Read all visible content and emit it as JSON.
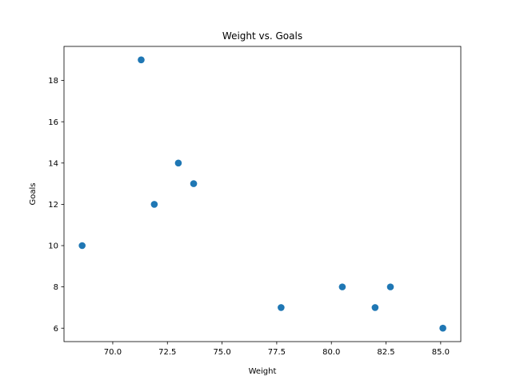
{
  "chart_data": {
    "type": "scatter",
    "title": "Weight vs. Goals",
    "xlabel": "Weight",
    "ylabel": "Goals",
    "xlim": [
      67.77,
      85.92
    ],
    "ylim": [
      5.35,
      19.65
    ],
    "x_ticks": [
      70.0,
      72.5,
      75.0,
      77.5,
      80.0,
      82.5,
      85.0
    ],
    "x_tick_labels": [
      "70.0",
      "72.5",
      "75.0",
      "77.5",
      "80.0",
      "82.5",
      "85.0"
    ],
    "y_ticks": [
      6,
      8,
      10,
      12,
      14,
      16,
      18
    ],
    "y_tick_labels": [
      "6",
      "8",
      "10",
      "12",
      "14",
      "16",
      "18"
    ],
    "grid": false,
    "marker_color": "#1f77b4",
    "points": [
      {
        "x": 71.3,
        "y": 19
      },
      {
        "x": 73.0,
        "y": 14
      },
      {
        "x": 73.7,
        "y": 13
      },
      {
        "x": 71.9,
        "y": 12
      },
      {
        "x": 68.6,
        "y": 10
      },
      {
        "x": 80.5,
        "y": 8
      },
      {
        "x": 82.7,
        "y": 8
      },
      {
        "x": 77.7,
        "y": 7
      },
      {
        "x": 82.0,
        "y": 7
      },
      {
        "x": 85.1,
        "y": 6
      }
    ]
  }
}
